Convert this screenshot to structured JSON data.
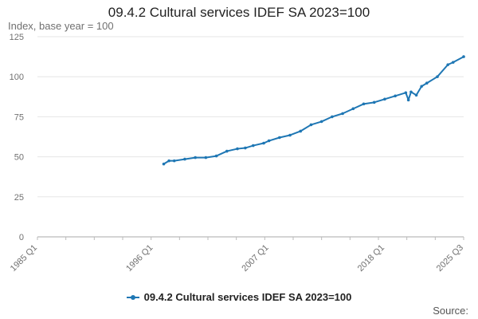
{
  "chart_data": {
    "type": "line",
    "title": "09.4.2 Cultural services IDEF SA 2023=100",
    "subtitle": "Index, base year = 100",
    "xlabel": "",
    "ylabel": "",
    "x_range": [
      "1985 Q1",
      "2025 Q3"
    ],
    "x_tick_labels": [
      "1985 Q1",
      "1996 Q1",
      "2007 Q1",
      "2018 Q1",
      "2025 Q3"
    ],
    "ylim": [
      0,
      125
    ],
    "y_ticks": [
      0,
      25,
      50,
      75,
      100,
      125
    ],
    "grid": true,
    "legend_position": "bottom",
    "series": [
      {
        "name": "09.4.2 Cultural services IDEF SA 2023=100",
        "color": "#1f77b4",
        "x": [
          "1997 Q1",
          "1997 Q3",
          "1998 Q1",
          "1999 Q1",
          "2000 Q1",
          "2001 Q1",
          "2002 Q1",
          "2003 Q1",
          "2004 Q1",
          "2004 Q4",
          "2005 Q3",
          "2006 Q3",
          "2007 Q1",
          "2008 Q1",
          "2009 Q1",
          "2010 Q1",
          "2011 Q1",
          "2012 Q1",
          "2013 Q1",
          "2014 Q1",
          "2015 Q1",
          "2016 Q1",
          "2017 Q1",
          "2018 Q1",
          "2019 Q1",
          "2020 Q1",
          "2020 Q2",
          "2020 Q3",
          "2021 Q1",
          "2021 Q3",
          "2022 Q1",
          "2023 Q1",
          "2024 Q1",
          "2024 Q3",
          "2025 Q3"
        ],
        "values": [
          45.5,
          47.5,
          47.5,
          48.5,
          49.5,
          49.5,
          50.5,
          53.5,
          55,
          55.5,
          57,
          58.5,
          60,
          62,
          63.5,
          66,
          70,
          72,
          75,
          77,
          80,
          83,
          84,
          86,
          88,
          90,
          85.5,
          90.5,
          88.5,
          94,
          96,
          100,
          107.5,
          109,
          112.5
        ]
      }
    ],
    "legend": [
      "09.4.2 Cultural services IDEF SA 2023=100"
    ],
    "source_label": "Source:"
  }
}
